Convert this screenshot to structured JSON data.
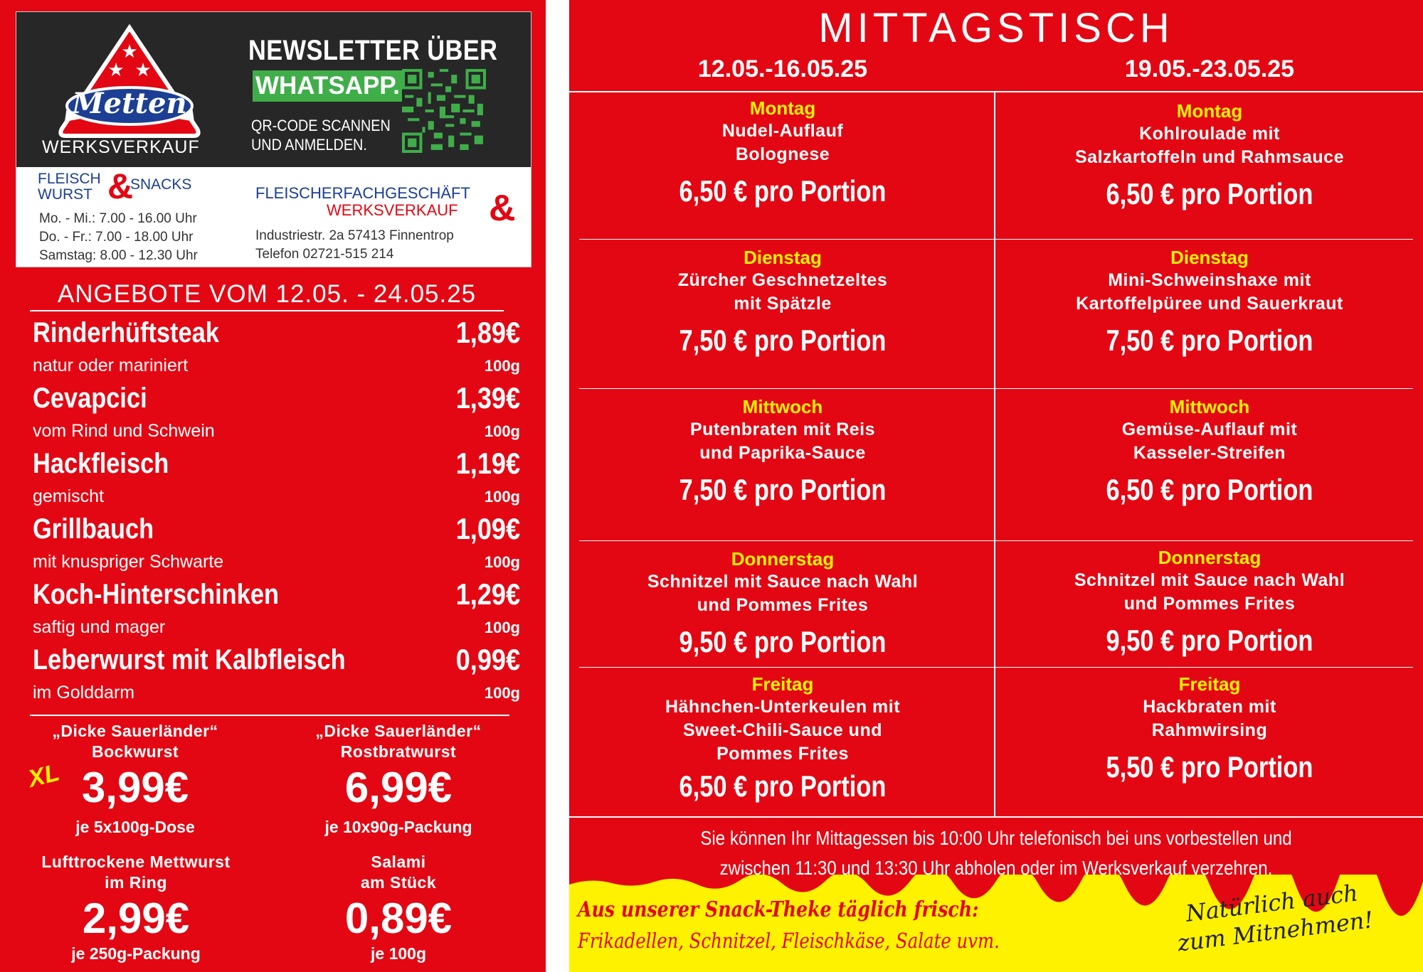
{
  "header": {
    "brand": "Metten",
    "werksverkauf": "WERKSVERKAUF",
    "newsletter_title": "NEWSLETTER ÜBER",
    "newsletter_channel": "WHATSAPP.",
    "qr_instruction_line1": "QR-CODE SCANNEN",
    "qr_instruction_line2": "UND ANMELDEN.",
    "fws_line1": "FLEISCH",
    "fws_line2": "WURST",
    "fws_snacks": "SNACKS",
    "ampersand": "&",
    "hours": [
      "Mo. - Mi.: 7.00 - 16.00 Uhr",
      "Do. - Fr.:   7.00 - 18.00 Uhr",
      "Samstag:  8.00 - 12.30 Uhr"
    ],
    "shop_line1": "FLEISCHERFACHGESCHÄFT",
    "shop_line2": "WERKSVERKAUF",
    "address": "Industriestr. 2a   57413 Finnentrop",
    "phone": "Telefon 02721-515 214"
  },
  "offers": {
    "title": "ANGEBOTE VOM 12.05. - 24.05.25",
    "items": [
      {
        "name": "Rinderhüftsteak",
        "sub": "natur oder mariniert",
        "price": "1,89€",
        "unit": "100g"
      },
      {
        "name": "Cevapcici",
        "sub": "vom Rind und Schwein",
        "price": "1,39€",
        "unit": "100g"
      },
      {
        "name": "Hackfleisch",
        "sub": "gemischt",
        "price": "1,19€",
        "unit": "100g"
      },
      {
        "name": "Grillbauch",
        "sub": "mit knuspriger Schwarte",
        "price": "1,09€",
        "unit": "100g"
      },
      {
        "name": "Koch-Hinterschinken",
        "sub": "saftig und mager",
        "price": "1,29€",
        "unit": "100g"
      },
      {
        "name": "Leberwurst mit Kalbfleisch",
        "sub": "im Golddarm",
        "price": "0,99€",
        "unit": "100g"
      }
    ],
    "specials": [
      {
        "line1": "„Dicke Sauerländer“",
        "line2": "Bockwurst",
        "price": "3,99€",
        "unit": "je 5x100g-Dose",
        "badge": "XL"
      },
      {
        "line1": "„Dicke Sauerländer“",
        "line2": "Rostbratwurst",
        "price": "6,99€",
        "unit": "je 10x90g-Packung"
      },
      {
        "line1": "Lufttrockene Mettwurst",
        "line2": "im Ring",
        "price": "2,99€",
        "unit": "je 250g-Packung"
      },
      {
        "line1": "Salami",
        "line2": "am Stück",
        "price": "0,89€",
        "unit": "je 100g"
      }
    ]
  },
  "mittagstisch": {
    "title": "MITTAGSTISCH",
    "weeks": [
      "12.05.-16.05.25",
      "19.05.-23.05.25"
    ],
    "days": [
      {
        "week1": {
          "day": "Montag",
          "dish": [
            "Nudel-Auflauf",
            "Bolognese"
          ],
          "price": "6,50 € pro Portion"
        },
        "week2": {
          "day": "Montag",
          "dish": [
            "Kohlroulade mit",
            "Salzkartoffeln und Rahmsauce"
          ],
          "price": "6,50 € pro Portion"
        }
      },
      {
        "week1": {
          "day": "Dienstag",
          "dish": [
            "Zürcher Geschnetzeltes",
            "mit Spätzle"
          ],
          "price": "7,50 € pro Portion"
        },
        "week2": {
          "day": "Dienstag",
          "dish": [
            "Mini-Schweinshaxe mit",
            "Kartoffelpüree und Sauerkraut"
          ],
          "price": "7,50 € pro Portion"
        }
      },
      {
        "week1": {
          "day": "Mittwoch",
          "dish": [
            "Putenbraten mit Reis",
            "und Paprika-Sauce"
          ],
          "price": "7,50 € pro Portion"
        },
        "week2": {
          "day": "Mittwoch",
          "dish": [
            "Gemüse-Auflauf mit",
            "Kasseler-Streifen"
          ],
          "price": "6,50 € pro Portion"
        }
      },
      {
        "week1": {
          "day": "Donnerstag",
          "dish": [
            "Schnitzel mit Sauce nach Wahl",
            "und Pommes Frites"
          ],
          "price": "9,50 € pro Portion"
        },
        "week2": {
          "day": "Donnerstag",
          "dish": [
            "Schnitzel mit Sauce nach Wahl",
            "und Pommes Frites"
          ],
          "price": "9,50 € pro Portion"
        }
      },
      {
        "week1": {
          "day": "Freitag",
          "dish": [
            "Hähnchen-Unterkeulen mit",
            "Sweet-Chili-Sauce und",
            "Pommes Frites"
          ],
          "price": "6,50 € pro Portion"
        },
        "week2": {
          "day": "Freitag",
          "dish": [
            "Hackbraten mit",
            "Rahmwirsing"
          ],
          "price": "5,50 € pro Portion"
        }
      }
    ],
    "info_line1": "Sie können Ihr Mittagessen bis 10:00 Uhr telefonisch bei uns vorbestellen und",
    "info_line2": "zwischen 11:30 und 13:30 Uhr abholen oder im Werksverkauf verzehren.",
    "snack_title": "Aus unserer Snack-Theke täglich frisch:",
    "snack_items": "Frikadellen, Schnitzel, Fleischkäse, Salate uvm.",
    "takeaway_line1": "Natürlich auch",
    "takeaway_line2": "zum Mitnehmen!"
  },
  "colors": {
    "red": "#e30713",
    "yellow": "#fff200",
    "whatsapp_green": "#3fae49",
    "navy": "#1c3f94",
    "dark": "#272728"
  },
  "icons": {
    "logo": "metten-triangle-logo",
    "qr": "qr-code-icon"
  }
}
